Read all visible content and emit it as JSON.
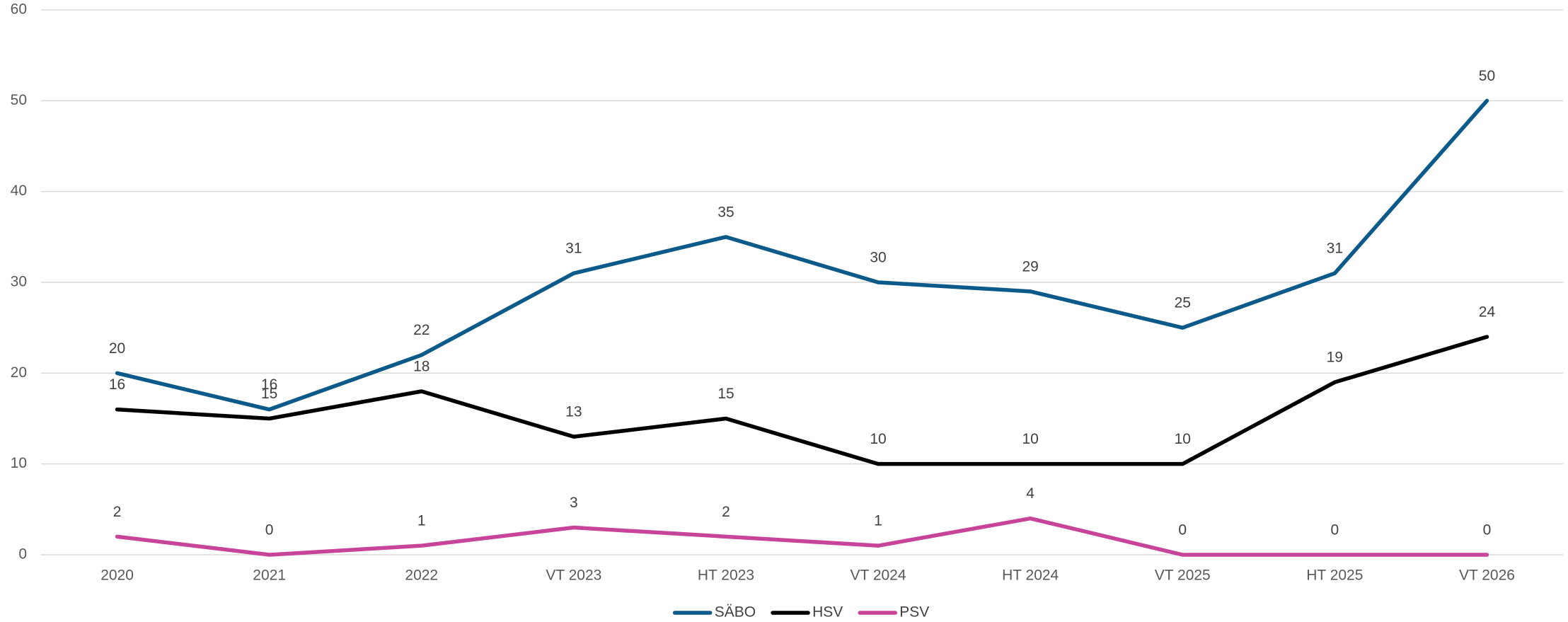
{
  "chart_data": {
    "type": "line",
    "categories": [
      "2020",
      "2021",
      "2022",
      "VT 2023",
      "HT 2023",
      "VT 2024",
      "HT 2024",
      "VT 2025",
      "HT 2025",
      "VT 2026"
    ],
    "series": [
      {
        "name": "SÄBO",
        "color": "#0b5a8a",
        "values": [
          20,
          16,
          22,
          31,
          35,
          30,
          29,
          25,
          31,
          50
        ]
      },
      {
        "name": "HSV",
        "color": "#000000",
        "values": [
          16,
          15,
          18,
          13,
          15,
          10,
          10,
          10,
          19,
          24
        ]
      },
      {
        "name": "PSV",
        "color": "#c8439a",
        "values": [
          2,
          0,
          1,
          3,
          2,
          1,
          4,
          0,
          0,
          0
        ]
      }
    ],
    "ylim": [
      0,
      60
    ],
    "yticks": [
      0,
      10,
      20,
      30,
      40,
      50,
      60
    ],
    "grid": true,
    "legend": "bottom"
  }
}
